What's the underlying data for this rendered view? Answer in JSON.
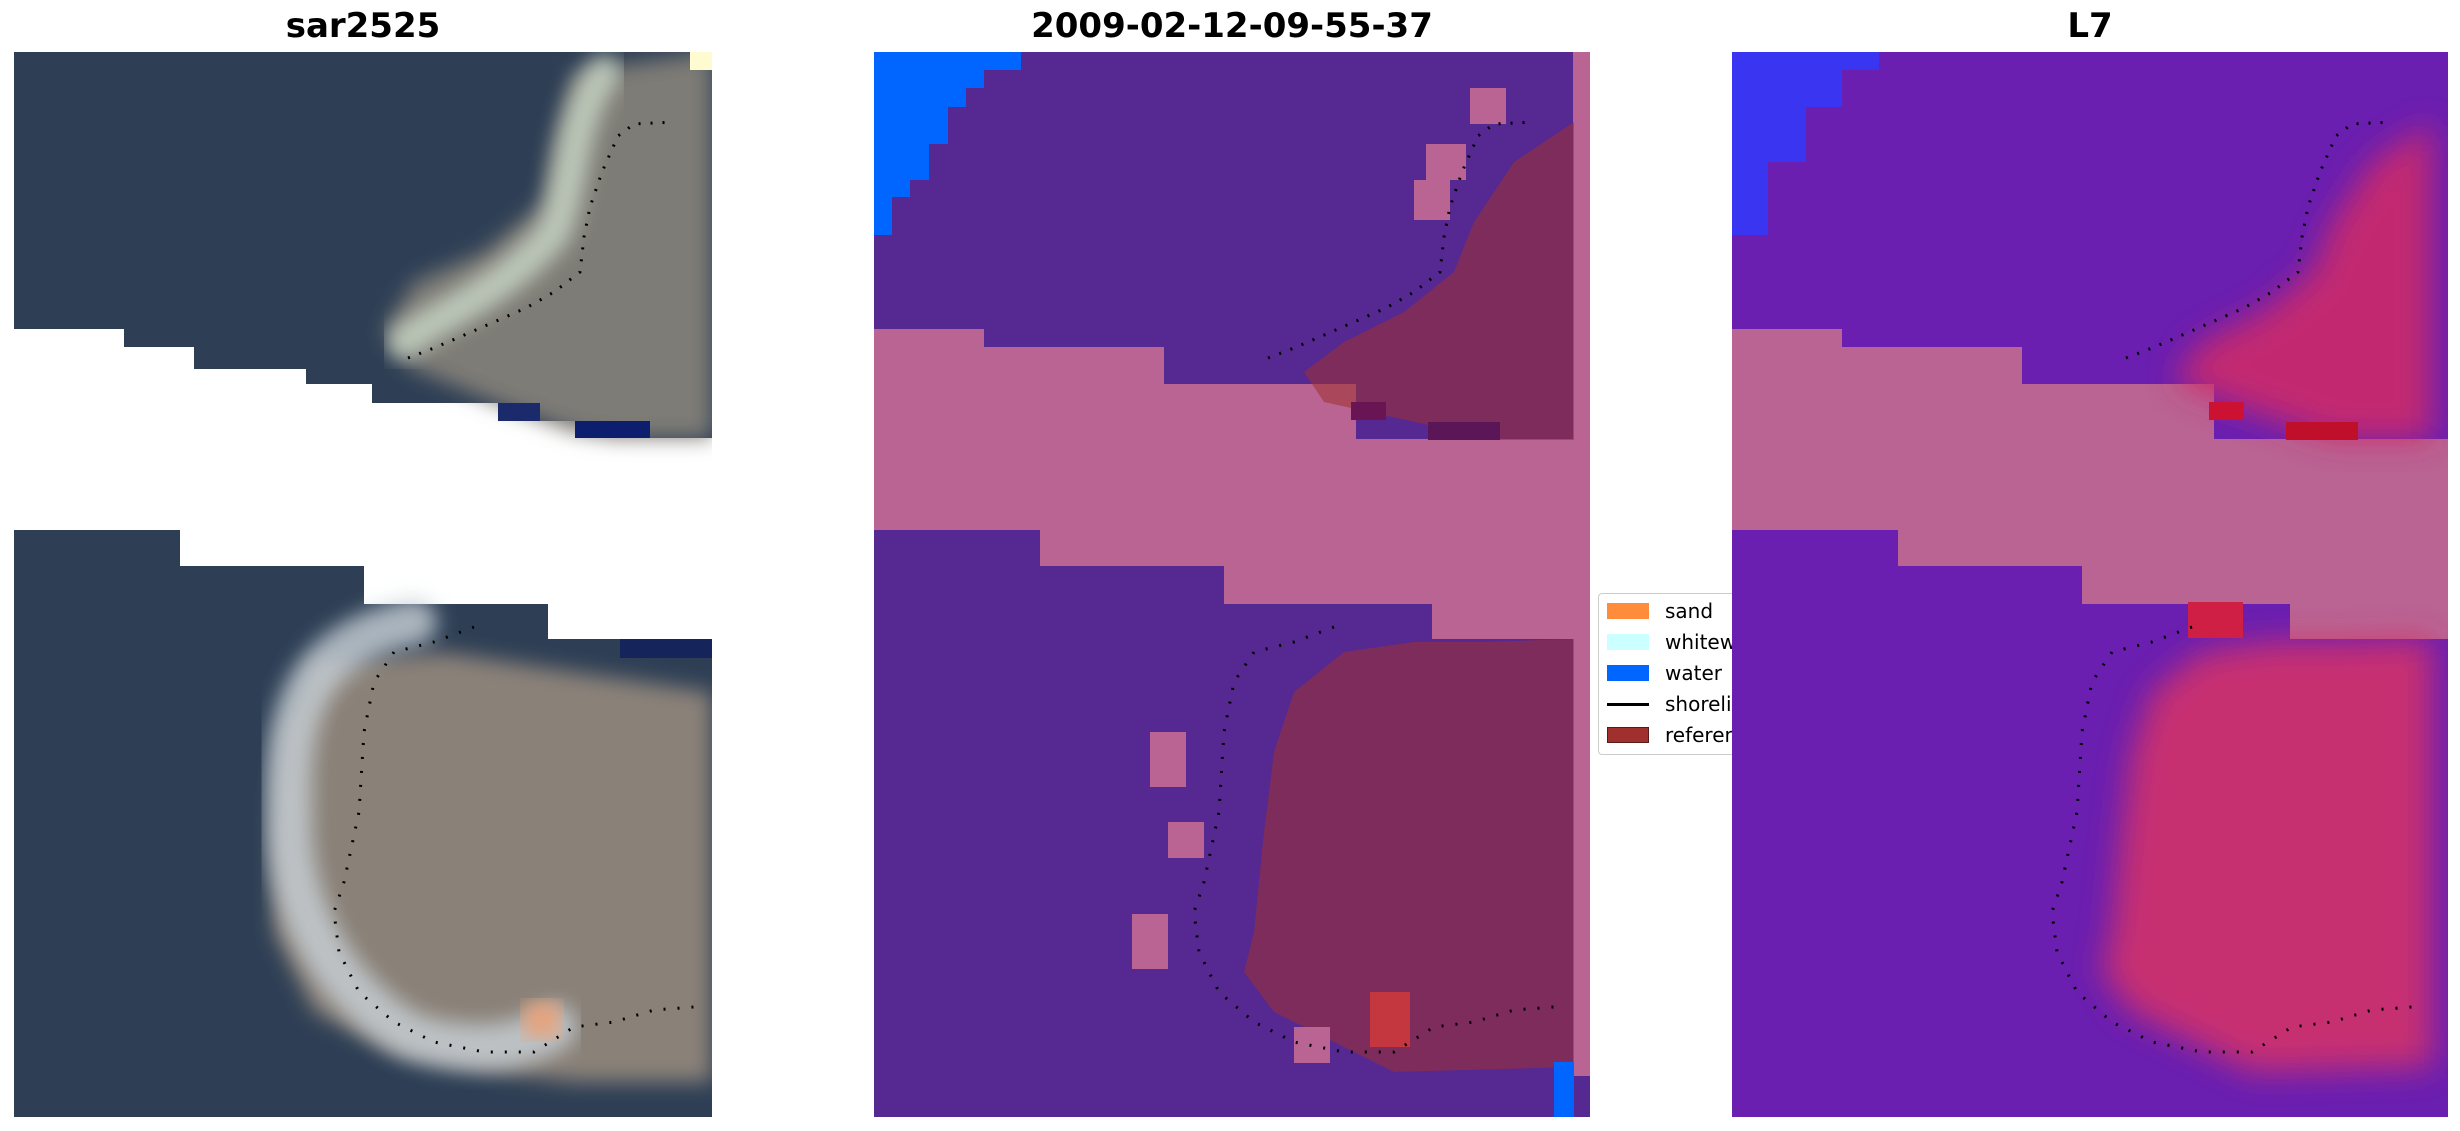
{
  "figure": {
    "panels": [
      {
        "title": "sar2525",
        "icon": "rgb-satellite-image"
      },
      {
        "title": "2009-02-12-09-55-37",
        "icon": "classified-image"
      },
      {
        "title": "L7",
        "icon": "mndwi-image"
      }
    ]
  },
  "legend": {
    "items": [
      {
        "label": "sand",
        "color": "#ff8c3a",
        "kind": "patch"
      },
      {
        "label": "whitewater",
        "color": "#ccffff",
        "kind": "patch"
      },
      {
        "label": "water",
        "color": "#0066ff",
        "kind": "patch"
      },
      {
        "label": "shoreline",
        "color": "#000000",
        "kind": "line"
      },
      {
        "label": "reference",
        "color": "#a0302e",
        "kind": "patch"
      }
    ]
  },
  "colors": {
    "ocean_rgb": "#2e3f55",
    "class_other": "#552892",
    "class_land": "#b96493",
    "class_water": "#0066ff",
    "mndwi_low": "#6a1fb0",
    "mndwi_high": "#cc2255"
  }
}
